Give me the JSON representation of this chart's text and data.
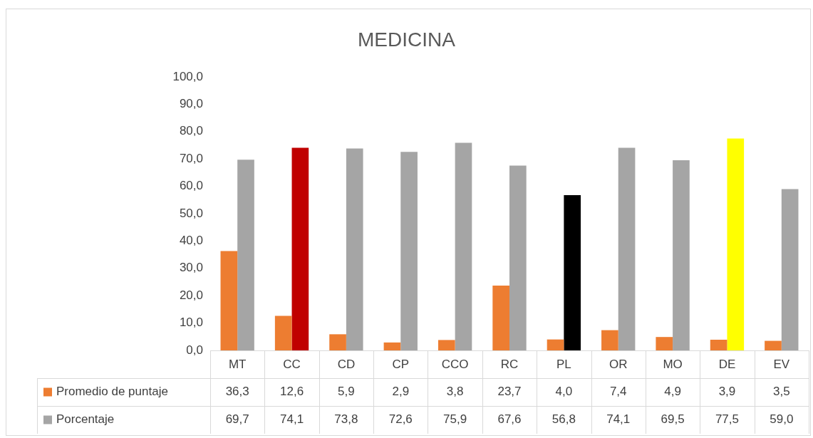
{
  "chart_data": {
    "type": "bar",
    "title": "MEDICINA",
    "categories": [
      "MT",
      "CC",
      "CD",
      "CP",
      "CCO",
      "RC",
      "PL",
      "OR",
      "MO",
      "DE",
      "EV"
    ],
    "series": [
      {
        "name": "Promedio de puntaje",
        "color": "#ed7d31",
        "values": [
          36.3,
          12.6,
          5.9,
          2.9,
          3.8,
          23.7,
          4.0,
          7.4,
          4.9,
          3.9,
          3.5
        ],
        "value_labels": [
          "36,3",
          "12,6",
          "5,9",
          "2,9",
          "3,8",
          "23,7",
          "4,0",
          "7,4",
          "4,9",
          "3,9",
          "3,5"
        ]
      },
      {
        "name": "Porcentaje",
        "color": "#a5a5a5",
        "colors": [
          "#a5a5a5",
          "#c00000",
          "#a5a5a5",
          "#a5a5a5",
          "#a5a5a5",
          "#a5a5a5",
          "#000000",
          "#a5a5a5",
          "#a5a5a5",
          "#ffff00",
          "#a5a5a5"
        ],
        "values": [
          69.7,
          74.1,
          73.8,
          72.6,
          75.9,
          67.6,
          56.8,
          74.1,
          69.5,
          77.5,
          59.0
        ],
        "value_labels": [
          "69,7",
          "74,1",
          "73,8",
          "72,6",
          "75,9",
          "67,6",
          "56,8",
          "74,1",
          "69,5",
          "77,5",
          "59,0"
        ]
      }
    ],
    "ylim": [
      0,
      100
    ],
    "yticks": [
      {
        "value": 0,
        "label": "0,0"
      },
      {
        "value": 10,
        "label": "10,0"
      },
      {
        "value": 20,
        "label": "20,0"
      },
      {
        "value": 30,
        "label": "30,0"
      },
      {
        "value": 40,
        "label": "40,0"
      },
      {
        "value": 50,
        "label": "50,0"
      },
      {
        "value": 60,
        "label": "60,0"
      },
      {
        "value": 70,
        "label": "70,0"
      },
      {
        "value": 80,
        "label": "80,0"
      },
      {
        "value": 90,
        "label": "90,0"
      },
      {
        "value": 100,
        "label": "100,0"
      }
    ],
    "legend": "bottom",
    "grid": false
  }
}
